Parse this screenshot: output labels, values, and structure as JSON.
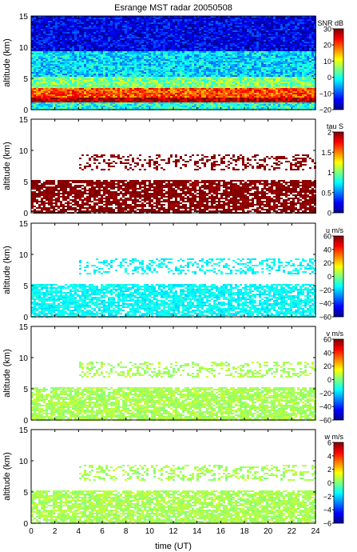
{
  "chart_data": {
    "type": "heatmap",
    "title": "Esrange MST radar 20050508",
    "xlabel": "time (UT)",
    "xlim": [
      0,
      24
    ],
    "x_ticks": [
      "0",
      "2",
      "4",
      "6",
      "8",
      "10",
      "12",
      "14",
      "16",
      "18",
      "20",
      "22",
      "24"
    ],
    "panels": [
      {
        "id": "snr",
        "ylabel": "altitude (km)",
        "ylim": [
          0,
          15
        ],
        "y_ticks": [
          "0",
          "5",
          "10",
          "15"
        ],
        "colorbar_label": "SNR dB",
        "clim": [
          -20,
          30
        ],
        "colorbar_ticks": [
          "30",
          "20",
          "10",
          "0",
          "−10",
          "−20"
        ],
        "layers": [
          {
            "alt_range": [
              0,
              1.2
            ],
            "value": 0
          },
          {
            "alt_range": [
              1.2,
              2.0
            ],
            "value": 28
          },
          {
            "alt_range": [
              2.0,
              3.5
            ],
            "value": 20
          },
          {
            "alt_range": [
              3.5,
              5.5
            ],
            "value": 5
          },
          {
            "alt_range": [
              5.5,
              9.5
            ],
            "value": -3
          },
          {
            "alt_range": [
              9.5,
              15
            ],
            "value": -15
          }
        ]
      },
      {
        "id": "tau",
        "ylabel": "altitude (km)",
        "ylim": [
          0,
          15
        ],
        "y_ticks": [
          "0",
          "5",
          "10",
          "15"
        ],
        "colorbar_label": "tau S",
        "clim": [
          0,
          2
        ],
        "colorbar_ticks": [
          "2",
          "1.5",
          "1",
          "0.5",
          "0"
        ],
        "dominant_value": 2,
        "echo_regions": [
          {
            "time_range": [
              0,
              24
            ],
            "alt_range": [
              0,
              5.5
            ]
          },
          {
            "time_range": [
              4,
              24
            ],
            "alt_range": [
              7,
              9.5
            ]
          }
        ]
      },
      {
        "id": "u",
        "ylabel": "altitude (km)",
        "ylim": [
          0,
          15
        ],
        "y_ticks": [
          "0",
          "5",
          "10",
          "15"
        ],
        "colorbar_label": "u m/s",
        "clim": [
          -60,
          60
        ],
        "colorbar_ticks": [
          "60",
          "40",
          "20",
          "0",
          "−20",
          "−40",
          "−60"
        ],
        "dominant_value": -15,
        "echo_regions": [
          {
            "time_range": [
              0,
              24
            ],
            "alt_range": [
              0,
              5.5
            ]
          },
          {
            "time_range": [
              4,
              24
            ],
            "alt_range": [
              7,
              9.5
            ]
          }
        ]
      },
      {
        "id": "v",
        "ylabel": "altitude (km)",
        "ylim": [
          0,
          15
        ],
        "y_ticks": [
          "0",
          "5",
          "10",
          "15"
        ],
        "colorbar_label": "v m/s",
        "clim": [
          -60,
          60
        ],
        "colorbar_ticks": [
          "60",
          "40",
          "20",
          "0",
          "−20",
          "−40",
          "−60"
        ],
        "dominant_value": 5,
        "echo_regions": [
          {
            "time_range": [
              0,
              24
            ],
            "alt_range": [
              0,
              5.5
            ]
          },
          {
            "time_range": [
              4,
              24
            ],
            "alt_range": [
              7,
              9.5
            ]
          }
        ]
      },
      {
        "id": "w",
        "ylabel": "altitude (km)",
        "ylim": [
          0,
          15
        ],
        "y_ticks": [
          "0",
          "5",
          "10",
          "15"
        ],
        "colorbar_label": "w m/s",
        "clim": [
          -6,
          6
        ],
        "colorbar_ticks": [
          "6",
          "4",
          "2",
          "0",
          "−2",
          "−4",
          "−6"
        ],
        "dominant_value": 0.5,
        "echo_regions": [
          {
            "time_range": [
              0,
              24
            ],
            "alt_range": [
              0,
              5.5
            ]
          },
          {
            "time_range": [
              4,
              24
            ],
            "alt_range": [
              7,
              9.5
            ]
          }
        ]
      }
    ]
  }
}
